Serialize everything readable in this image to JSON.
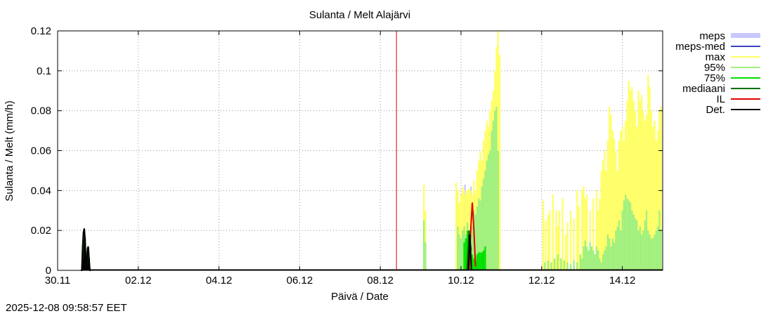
{
  "timestamp": "2025-12-08 09:58:57 EET",
  "chart_data": {
    "type": "bar",
    "title": "Sulanta / Melt  Alajärvi",
    "xlabel": "Päivä / Date",
    "ylabel": "Sulanta / Melt (mm/h)",
    "x_unit": "days since 30.11 00:00",
    "xlim": [
      0,
      15
    ],
    "ylim": [
      0,
      0.12
    ],
    "grid": true,
    "legend_position": "right",
    "x_tick_labels": [
      {
        "x": 0,
        "label": "30.11"
      },
      {
        "x": 2,
        "label": "02.12"
      },
      {
        "x": 4,
        "label": "04.12"
      },
      {
        "x": 6,
        "label": "06.12"
      },
      {
        "x": 8,
        "label": "08.12"
      },
      {
        "x": 10,
        "label": "10.12"
      },
      {
        "x": 12,
        "label": "12.12"
      },
      {
        "x": 14,
        "label": "14.12"
      }
    ],
    "y_ticks": [
      {
        "v": 0,
        "label": "0"
      },
      {
        "v": 0.02,
        "label": "0.02"
      },
      {
        "v": 0.04,
        "label": "0.04"
      },
      {
        "v": 0.06,
        "label": "0.06"
      },
      {
        "v": 0.08,
        "label": "0.08"
      },
      {
        "v": 0.1,
        "label": "0.1"
      },
      {
        "v": 0.12,
        "label": "0.12"
      }
    ],
    "analysis_time_x": 8.4,
    "legend": [
      {
        "label": "meps",
        "color": "#c8c8ff",
        "style": "box"
      },
      {
        "label": "meps-med",
        "color": "#4040c0",
        "style": "line"
      },
      {
        "label": "max",
        "color": "#ffff66",
        "style": "line"
      },
      {
        "label": "95%",
        "color": "#a0f080",
        "style": "line"
      },
      {
        "label": "75%",
        "color": "#00e000",
        "style": "line"
      },
      {
        "label": "mediaani",
        "color": "#007000",
        "style": "line"
      },
      {
        "label": "IL",
        "color": "#e00000",
        "style": "line"
      },
      {
        "label": "Det.",
        "color": "#000000",
        "style": "line"
      }
    ],
    "bar_width": 0.04,
    "series": [
      {
        "name": "meps",
        "color": "#c8c8ff",
        "x": [
          9.9,
          10.1,
          10.25,
          10.5
        ],
        "values": [
          0.04,
          0.043,
          0.042,
          0.044
        ]
      },
      {
        "name": "max",
        "color": "#ffff66",
        "x": [
          9.08,
          9.12,
          9.88,
          9.92,
          9.96,
          10.0,
          10.04,
          10.08,
          10.12,
          10.16,
          10.2,
          10.24,
          10.28,
          10.32,
          10.36,
          10.4,
          10.44,
          10.48,
          10.52,
          10.56,
          10.6,
          10.64,
          10.68,
          10.72,
          10.76,
          10.8,
          10.84,
          10.88,
          10.92,
          10.96,
          12.04,
          12.1,
          12.16,
          12.2,
          12.28,
          12.36,
          12.4,
          12.44,
          12.52,
          12.6,
          12.64,
          12.72,
          12.8,
          12.88,
          12.92,
          13.0,
          13.04,
          13.08,
          13.12,
          13.2,
          13.28,
          13.36,
          13.4,
          13.44,
          13.48,
          13.52,
          13.56,
          13.6,
          13.64,
          13.68,
          13.72,
          13.76,
          13.8,
          13.84,
          13.88,
          13.92,
          13.96,
          14.0,
          14.04,
          14.08,
          14.12,
          14.16,
          14.2,
          14.24,
          14.28,
          14.32,
          14.36,
          14.4,
          14.44,
          14.48,
          14.52,
          14.56,
          14.6,
          14.64,
          14.68,
          14.72,
          14.76,
          14.8,
          14.84,
          14.88,
          14.92,
          14.96
        ],
        "values": [
          0.043,
          0.03,
          0.044,
          0.04,
          0.034,
          0.038,
          0.042,
          0.04,
          0.038,
          0.04,
          0.041,
          0.04,
          0.038,
          0.045,
          0.04,
          0.05,
          0.055,
          0.06,
          0.055,
          0.065,
          0.07,
          0.075,
          0.072,
          0.08,
          0.085,
          0.09,
          0.1,
          0.112,
          0.12,
          0.108,
          0.035,
          0.025,
          0.028,
          0.03,
          0.038,
          0.03,
          0.022,
          0.03,
          0.036,
          0.018,
          0.024,
          0.03,
          0.026,
          0.04,
          0.032,
          0.04,
          0.042,
          0.036,
          0.038,
          0.03,
          0.036,
          0.04,
          0.03,
          0.036,
          0.05,
          0.055,
          0.06,
          0.05,
          0.065,
          0.082,
          0.078,
          0.07,
          0.066,
          0.06,
          0.05,
          0.065,
          0.07,
          0.072,
          0.065,
          0.075,
          0.085,
          0.095,
          0.09,
          0.092,
          0.085,
          0.08,
          0.072,
          0.09,
          0.085,
          0.088,
          0.08,
          0.075,
          0.078,
          0.098,
          0.092,
          0.08,
          0.072,
          0.075,
          0.065,
          0.07,
          0.08,
          0.082
        ]
      },
      {
        "name": "95%",
        "color": "#a0f080",
        "x": [
          9.08,
          9.12,
          9.92,
          9.96,
          10.0,
          10.04,
          10.08,
          10.12,
          10.16,
          10.2,
          10.24,
          10.28,
          10.32,
          10.36,
          10.4,
          10.44,
          10.48,
          10.52,
          10.56,
          10.6,
          10.64,
          10.68,
          10.72,
          10.76,
          10.8,
          10.84,
          10.88,
          10.92,
          12.08,
          12.16,
          12.24,
          12.32,
          12.4,
          12.48,
          12.56,
          12.64,
          12.72,
          12.8,
          12.88,
          12.96,
          13.0,
          13.04,
          13.08,
          13.12,
          13.16,
          13.2,
          13.24,
          13.28,
          13.32,
          13.36,
          13.4,
          13.44,
          13.48,
          13.52,
          13.56,
          13.6,
          13.64,
          13.68,
          13.72,
          13.76,
          13.8,
          13.84,
          13.88,
          13.92,
          13.96,
          14.0,
          14.04,
          14.08,
          14.12,
          14.16,
          14.2,
          14.24,
          14.28,
          14.32,
          14.36,
          14.4,
          14.44,
          14.48,
          14.52,
          14.56,
          14.6,
          14.64,
          14.68,
          14.72,
          14.76,
          14.8,
          14.84,
          14.88,
          14.92,
          14.96
        ],
        "values": [
          0.025,
          0.014,
          0.022,
          0.018,
          0.016,
          0.02,
          0.022,
          0.018,
          0.024,
          0.02,
          0.018,
          0.022,
          0.03,
          0.028,
          0.032,
          0.036,
          0.035,
          0.042,
          0.046,
          0.05,
          0.055,
          0.058,
          0.06,
          0.07,
          0.075,
          0.08,
          0.082,
          0.06,
          0.004,
          0.005,
          0.004,
          0.006,
          0.008,
          0.006,
          0.005,
          0.004,
          0.003,
          0.005,
          0.004,
          0.008,
          0.006,
          0.012,
          0.015,
          0.012,
          0.01,
          0.014,
          0.012,
          0.01,
          0.008,
          0.012,
          0.01,
          0.006,
          0.004,
          0.008,
          0.01,
          0.012,
          0.018,
          0.016,
          0.012,
          0.016,
          0.014,
          0.02,
          0.022,
          0.025,
          0.02,
          0.03,
          0.035,
          0.038,
          0.036,
          0.035,
          0.034,
          0.03,
          0.028,
          0.026,
          0.025,
          0.02,
          0.022,
          0.018,
          0.02,
          0.025,
          0.03,
          0.02,
          0.018,
          0.016,
          0.016,
          0.018,
          0.02,
          0.022,
          0.03,
          0.02
        ]
      },
      {
        "name": "75%",
        "color": "#00e000",
        "x": [
          10.08,
          10.12,
          10.16,
          10.2,
          10.24,
          10.28,
          10.32,
          10.36,
          10.4,
          10.44,
          10.48,
          10.52,
          10.56,
          10.6
        ],
        "values": [
          0.014,
          0.016,
          0.02,
          0.018,
          0.012,
          0.008,
          0.006,
          0.005,
          0.008,
          0.009,
          0.009,
          0.009,
          0.01,
          0.012
        ]
      },
      {
        "name": "Det.",
        "color": "#000000",
        "x": [
          0.6,
          0.62,
          0.64,
          0.66,
          0.68,
          0.7,
          0.72,
          0.74,
          0.76,
          0.78,
          0.8
        ],
        "values": [
          0.0,
          0.01,
          0.018,
          0.02,
          0.016,
          0.006,
          0.0,
          0.01,
          0.011,
          0.006,
          0.0
        ]
      }
    ],
    "lines": [
      {
        "name": "mediaani",
        "color": "#007000",
        "x": [
          0.6,
          0.62,
          0.64,
          0.66,
          0.68,
          0.7,
          0.72,
          0.74,
          0.76,
          0.78,
          0.8,
          10.15,
          10.18,
          10.2,
          10.22,
          10.25
        ],
        "values": [
          0.0,
          0.008,
          0.016,
          0.019,
          0.015,
          0.005,
          0.0,
          0.009,
          0.01,
          0.005,
          0.0,
          0.0,
          0.012,
          0.02,
          0.016,
          0.01
        ]
      },
      {
        "name": "IL",
        "color": "#e00000",
        "x": [
          10.2,
          10.24,
          10.28,
          10.32,
          10.36
        ],
        "values": [
          0.0,
          0.02,
          0.034,
          0.02,
          0.002
        ]
      },
      {
        "name": "Det.",
        "color": "#000000",
        "x": [
          0.58,
          0.6,
          0.62,
          0.64,
          0.66,
          0.68,
          0.7,
          0.72,
          0.74,
          0.76,
          0.78,
          0.8,
          0.82,
          10.18,
          10.2,
          10.22,
          10.26
        ],
        "values": [
          0.0,
          0.0,
          0.012,
          0.019,
          0.021,
          0.016,
          0.005,
          0.0,
          0.011,
          0.012,
          0.006,
          0.0,
          0.0,
          0.0,
          0.008,
          0.018,
          0.0
        ]
      }
    ]
  }
}
